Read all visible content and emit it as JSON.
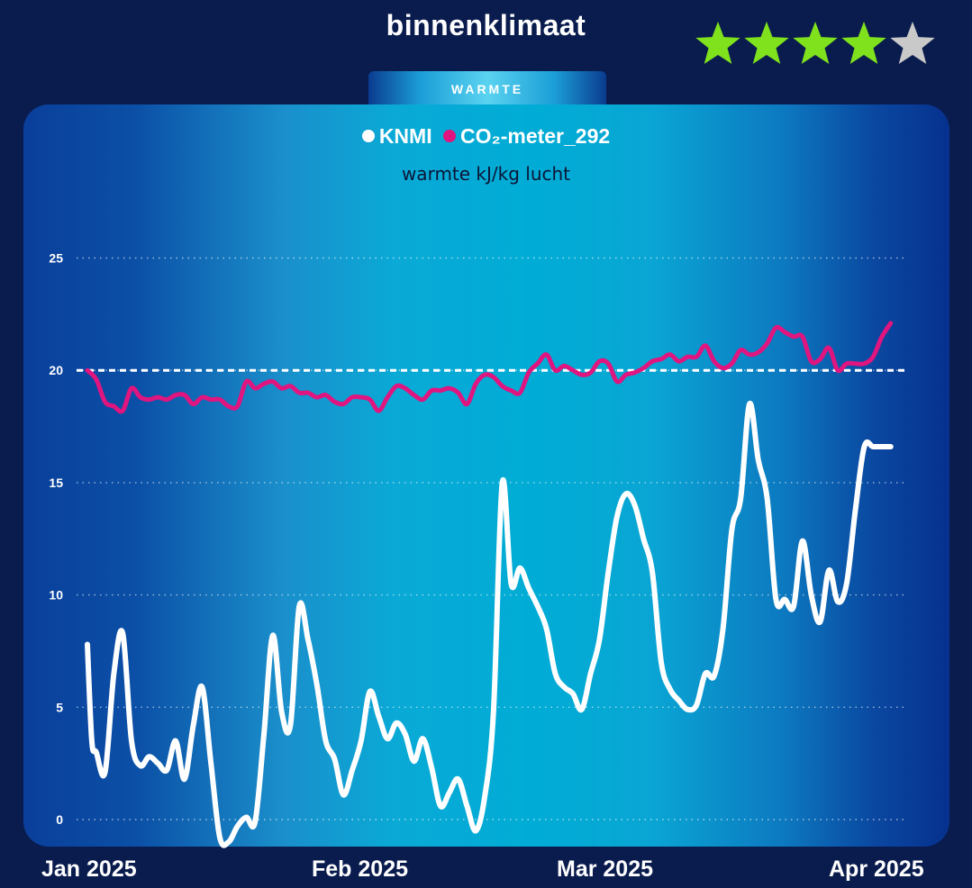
{
  "header": {
    "title": "binnenklimaat",
    "rating": 4,
    "rating_max": 5,
    "star_color": "#7fe21c",
    "star_empty_color": "#c9c9c9"
  },
  "tab": {
    "label": "WARMTE"
  },
  "chart_data": {
    "type": "line",
    "subtitle": "warmte kJ/kg lucht",
    "ylim": [
      -1.2,
      26
    ],
    "yticks": [
      "0",
      "5",
      "10",
      "15",
      "20",
      "25"
    ],
    "xticks": [
      "Jan 2025",
      "Feb 2025",
      "Mar 2025",
      "Apr 2025"
    ],
    "reference_line": 20,
    "grid": true,
    "legend_position": "top-center",
    "series": [
      {
        "name": "KNMI",
        "color": "#ffffff",
        "x": [
          "2025-01-01",
          "2025-01-01T12",
          "2025-01-02",
          "2025-01-03",
          "2025-01-04",
          "2025-01-05",
          "2025-01-06",
          "2025-01-07",
          "2025-01-08",
          "2025-01-09",
          "2025-01-10",
          "2025-01-11",
          "2025-01-12",
          "2025-01-13",
          "2025-01-14",
          "2025-01-15",
          "2025-01-16",
          "2025-01-17",
          "2025-01-18",
          "2025-01-19",
          "2025-01-20",
          "2025-01-21",
          "2025-01-22",
          "2025-01-23",
          "2025-01-24",
          "2025-01-25",
          "2025-01-26",
          "2025-01-27",
          "2025-01-28",
          "2025-01-29",
          "2025-01-30",
          "2025-01-31",
          "2025-02-01",
          "2025-02-02",
          "2025-02-03",
          "2025-02-04",
          "2025-02-05",
          "2025-02-06",
          "2025-02-07",
          "2025-02-08",
          "2025-02-09",
          "2025-02-10",
          "2025-02-11",
          "2025-02-12",
          "2025-02-13",
          "2025-02-14",
          "2025-02-15",
          "2025-02-16",
          "2025-02-17",
          "2025-02-18",
          "2025-02-19",
          "2025-02-20",
          "2025-02-21",
          "2025-02-22",
          "2025-02-23",
          "2025-02-24",
          "2025-02-25",
          "2025-02-26",
          "2025-02-27",
          "2025-02-28",
          "2025-03-01",
          "2025-03-02",
          "2025-03-03",
          "2025-03-04",
          "2025-03-05",
          "2025-03-06",
          "2025-03-07",
          "2025-03-08",
          "2025-03-09",
          "2025-03-10",
          "2025-03-11",
          "2025-03-12",
          "2025-03-13",
          "2025-03-14",
          "2025-03-15",
          "2025-03-16",
          "2025-03-17",
          "2025-03-18",
          "2025-03-19",
          "2025-03-20",
          "2025-03-21",
          "2025-03-22",
          "2025-03-23",
          "2025-03-24",
          "2025-03-25",
          "2025-03-26",
          "2025-03-27",
          "2025-03-28",
          "2025-03-29",
          "2025-03-30",
          "2025-03-31",
          "2025-04-01",
          "2025-04-02"
        ],
        "y": [
          7.8,
          3.5,
          3.0,
          2.1,
          6.5,
          8.3,
          3.5,
          2.4,
          2.8,
          2.5,
          2.2,
          3.5,
          1.8,
          4.2,
          5.9,
          2.5,
          -0.8,
          -1.0,
          -0.3,
          0.1,
          -0.1,
          3.8,
          8.2,
          4.8,
          4.2,
          9.5,
          8.0,
          6.0,
          3.5,
          2.7,
          1.1,
          2.2,
          3.5,
          5.7,
          4.6,
          3.6,
          4.3,
          3.8,
          2.6,
          3.6,
          2.3,
          0.6,
          1.2,
          1.8,
          0.6,
          -0.5,
          1.0,
          4.8,
          15.0,
          10.5,
          11.2,
          10.3,
          9.5,
          8.5,
          6.5,
          5.9,
          5.6,
          4.9,
          6.5,
          8.0,
          11.0,
          13.5,
          14.5,
          14.0,
          12.5,
          11.0,
          7.0,
          5.8,
          5.3,
          4.9,
          5.1,
          6.5,
          6.4,
          8.5,
          12.9,
          14.3,
          18.5,
          16.0,
          14.3,
          9.8,
          9.8,
          9.5,
          12.4,
          10.0,
          8.8,
          11.1,
          9.7,
          10.5,
          13.8,
          16.6,
          16.6,
          16.6,
          16.6
        ]
      },
      {
        "name": "CO₂-meter_292",
        "color": "#e0157f",
        "x": [
          "2025-01-01",
          "2025-01-02",
          "2025-01-03",
          "2025-01-04",
          "2025-01-05",
          "2025-01-06",
          "2025-01-07",
          "2025-01-08",
          "2025-01-09",
          "2025-01-10",
          "2025-01-11",
          "2025-01-12",
          "2025-01-13",
          "2025-01-14",
          "2025-01-15",
          "2025-01-16",
          "2025-01-17",
          "2025-01-18",
          "2025-01-19",
          "2025-01-20",
          "2025-01-21",
          "2025-01-22",
          "2025-01-23",
          "2025-01-24",
          "2025-01-25",
          "2025-01-26",
          "2025-01-27",
          "2025-01-28",
          "2025-01-29",
          "2025-01-30",
          "2025-01-31",
          "2025-02-01",
          "2025-02-02",
          "2025-02-03",
          "2025-02-04",
          "2025-02-05",
          "2025-02-06",
          "2025-02-07",
          "2025-02-08",
          "2025-02-09",
          "2025-02-10",
          "2025-02-11",
          "2025-02-12",
          "2025-02-13",
          "2025-02-14",
          "2025-02-15",
          "2025-02-16",
          "2025-02-17",
          "2025-02-18",
          "2025-02-19",
          "2025-02-20",
          "2025-02-21",
          "2025-02-22",
          "2025-02-23",
          "2025-02-24",
          "2025-02-25",
          "2025-02-26",
          "2025-02-27",
          "2025-02-28",
          "2025-03-01",
          "2025-03-02",
          "2025-03-03",
          "2025-03-04",
          "2025-03-05",
          "2025-03-06",
          "2025-03-07",
          "2025-03-08",
          "2025-03-09",
          "2025-03-10",
          "2025-03-11",
          "2025-03-12",
          "2025-03-13",
          "2025-03-14",
          "2025-03-15",
          "2025-03-16",
          "2025-03-17",
          "2025-03-18",
          "2025-03-19",
          "2025-03-20",
          "2025-03-21",
          "2025-03-22",
          "2025-03-23",
          "2025-03-24",
          "2025-03-25",
          "2025-03-26",
          "2025-03-27",
          "2025-03-28",
          "2025-03-29",
          "2025-03-30",
          "2025-03-31",
          "2025-04-01",
          "2025-04-02"
        ],
        "y": [
          20.0,
          19.6,
          18.6,
          18.4,
          18.2,
          19.2,
          18.8,
          18.7,
          18.8,
          18.7,
          18.9,
          18.9,
          18.5,
          18.8,
          18.7,
          18.7,
          18.4,
          18.4,
          19.5,
          19.2,
          19.4,
          19.5,
          19.2,
          19.3,
          19.0,
          19.0,
          18.8,
          18.9,
          18.6,
          18.5,
          18.8,
          18.8,
          18.7,
          18.2,
          18.8,
          19.3,
          19.2,
          18.9,
          18.7,
          19.1,
          19.1,
          19.2,
          19.0,
          18.5,
          19.4,
          19.8,
          19.7,
          19.3,
          19.1,
          19.0,
          19.9,
          20.3,
          20.7,
          20.0,
          20.2,
          20.0,
          19.8,
          19.9,
          20.4,
          20.3,
          19.5,
          19.8,
          19.9,
          20.1,
          20.4,
          20.5,
          20.7,
          20.4,
          20.6,
          20.6,
          21.1,
          20.4,
          20.1,
          20.3,
          20.9,
          20.7,
          20.8,
          21.2,
          21.9,
          21.7,
          21.5,
          21.5,
          20.4,
          20.5,
          21.0,
          20.0,
          20.3,
          20.3,
          20.3,
          20.6,
          21.5,
          22.1
        ]
      }
    ]
  }
}
